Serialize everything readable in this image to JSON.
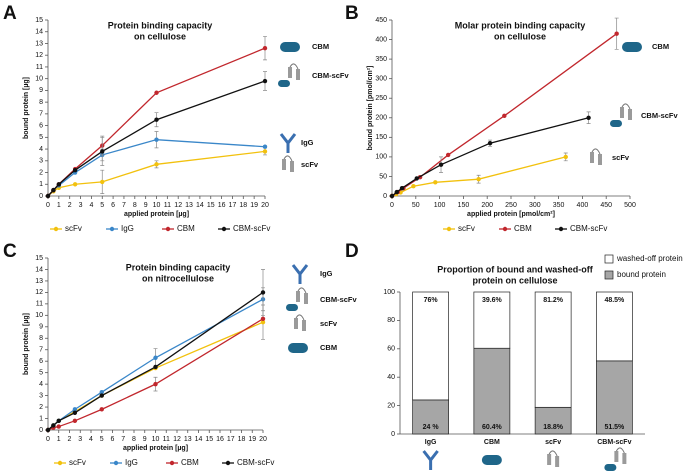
{
  "chart_data": [
    {
      "panel_label": "A",
      "type": "line",
      "title": [
        "Protein binding capacity",
        "on cellulose"
      ],
      "xlabel": "applied protein [µg]",
      "ylabel": "bound protein [µg]",
      "x": [
        0,
        0.5,
        1,
        2.5,
        5,
        10,
        20
      ],
      "xlim": [
        0,
        20
      ],
      "xticks": [
        0,
        1,
        2,
        3,
        4,
        5,
        6,
        7,
        8,
        9,
        10,
        11,
        12,
        13,
        14,
        15,
        16,
        17,
        18,
        19,
        20
      ],
      "ylim": [
        0,
        15
      ],
      "yticks": [
        0,
        1,
        2,
        3,
        4,
        5,
        6,
        7,
        8,
        9,
        10,
        11,
        12,
        13,
        14,
        15
      ],
      "series": [
        {
          "name": "scFv",
          "color": "#f2c10e",
          "values": [
            0,
            0.4,
            0.7,
            1.0,
            1.2,
            2.7,
            3.8
          ],
          "errors": [
            null,
            null,
            null,
            null,
            1,
            0.3,
            0.3
          ]
        },
        {
          "name": "IgG",
          "color": "#3a87c9",
          "values": [
            0,
            0.5,
            0.9,
            2.0,
            3.5,
            4.8,
            4.2
          ],
          "errors": [
            null,
            null,
            null,
            null,
            0.5,
            0.7,
            null
          ]
        },
        {
          "name": "CBM",
          "color": "#c1272d",
          "values": [
            0,
            0.5,
            1.0,
            2.3,
            4.3,
            8.8,
            12.6
          ],
          "errors": [
            null,
            null,
            null,
            null,
            0.8,
            null,
            1
          ]
        },
        {
          "name": "CBM-scFv",
          "color": "#111111",
          "values": [
            0,
            0.5,
            1.0,
            2.2,
            3.8,
            6.5,
            9.8
          ],
          "errors": [
            null,
            null,
            null,
            null,
            1.2,
            0.6,
            0.8
          ]
        }
      ],
      "annotations": [
        "CBM",
        "CBM-scFv",
        "IgG",
        "scFv"
      ]
    },
    {
      "panel_label": "B",
      "type": "line",
      "title": [
        "Molar protein binding capacity",
        "on cellulose"
      ],
      "xlabel": "applied protein [pmol/cm²]",
      "ylabel": "bound protein [pmol/cm²]",
      "xlim": [
        0,
        500
      ],
      "xticks": [
        0,
        50,
        100,
        150,
        200,
        250,
        300,
        350,
        400,
        450,
        500
      ],
      "ylim": [
        0,
        450
      ],
      "yticks": [
        0,
        50,
        100,
        150,
        200,
        250,
        300,
        350,
        400,
        450
      ],
      "series": [
        {
          "name": "scFv",
          "color": "#f2c10e",
          "x": [
            0,
            9,
            18,
            45,
            91,
            182,
            365
          ],
          "values": [
            0,
            5,
            9,
            25,
            35,
            43,
            100
          ],
          "errors": [
            null,
            null,
            null,
            null,
            null,
            10,
            10
          ]
        },
        {
          "name": "CBM",
          "color": "#c1272d",
          "x": [
            0,
            12,
            24,
            59,
            118,
            236,
            472
          ],
          "values": [
            0,
            10,
            20,
            48,
            105,
            205,
            415
          ],
          "errors": [
            null,
            null,
            null,
            null,
            null,
            null,
            40
          ]
        },
        {
          "name": "CBM-scFv",
          "color": "#111111",
          "x": [
            0,
            10,
            21,
            52,
            103,
            206,
            413
          ],
          "values": [
            0,
            10,
            20,
            45,
            80,
            135,
            200
          ],
          "errors": [
            null,
            null,
            null,
            null,
            20,
            8,
            15
          ]
        }
      ],
      "annotations": [
        "CBM",
        "CBM-scFv",
        "scFv"
      ]
    },
    {
      "panel_label": "C",
      "type": "line",
      "title": [
        "Protein binding capacity",
        "on nitrocellulose"
      ],
      "xlabel": "applied protein [µg]",
      "ylabel": "bound protein [µg]",
      "x": [
        0,
        0.5,
        1,
        2.5,
        5,
        10,
        20
      ],
      "xlim": [
        0,
        20
      ],
      "xticks": [
        0,
        1,
        2,
        3,
        4,
        5,
        6,
        7,
        8,
        9,
        10,
        11,
        12,
        13,
        14,
        15,
        16,
        17,
        18,
        19,
        20
      ],
      "ylim": [
        0,
        15
      ],
      "yticks": [
        0,
        1,
        2,
        3,
        4,
        5,
        6,
        7,
        8,
        9,
        10,
        11,
        12,
        13,
        14,
        15
      ],
      "series": [
        {
          "name": "scFv",
          "color": "#f2c10e",
          "values": [
            0,
            0.4,
            0.8,
            1.6,
            3.0,
            5.4,
            9.4
          ],
          "errors": [
            null,
            null,
            null,
            null,
            null,
            null,
            1.5
          ]
        },
        {
          "name": "IgG",
          "color": "#3a87c9",
          "values": [
            0,
            0.4,
            0.8,
            1.8,
            3.3,
            6.3,
            11.4
          ],
          "errors": [
            null,
            null,
            null,
            null,
            null,
            0.8,
            1
          ]
        },
        {
          "name": "CBM",
          "color": "#c1272d",
          "values": [
            0,
            0.2,
            0.3,
            0.8,
            1.8,
            4.0,
            9.7
          ],
          "errors": [
            null,
            null,
            null,
            null,
            null,
            0.6,
            null
          ]
        },
        {
          "name": "CBM-scFv",
          "color": "#111111",
          "values": [
            0,
            0.4,
            0.8,
            1.5,
            3.0,
            5.5,
            12.0
          ],
          "errors": [
            null,
            null,
            null,
            null,
            null,
            null,
            2
          ]
        }
      ],
      "annotations": [
        "IgG",
        "CBM-scFv",
        "scFv",
        "CBM"
      ]
    },
    {
      "panel_label": "D",
      "type": "stacked_bar",
      "title": [
        "Proportion of bound and washed-off",
        "protein on cellulose"
      ],
      "categories": [
        "IgG",
        "CBM",
        "scFv",
        "CBM-scFv"
      ],
      "ylim": [
        0,
        100
      ],
      "yticks": [
        0,
        20,
        40,
        60,
        80,
        100
      ],
      "series": [
        {
          "name": "bound protein",
          "color": "#a6a6a6",
          "values": [
            24,
            60.4,
            18.8,
            51.5
          ],
          "value_labels": [
            "24 %",
            "60.4%",
            "18.8%",
            "51.5%"
          ]
        },
        {
          "name": "washed-off protein",
          "color": "#ffffff",
          "values": [
            76,
            39.6,
            81.2,
            48.5
          ],
          "value_labels": [
            "76%",
            "39.6%",
            "81.2%",
            "48.5%"
          ]
        }
      ]
    }
  ]
}
